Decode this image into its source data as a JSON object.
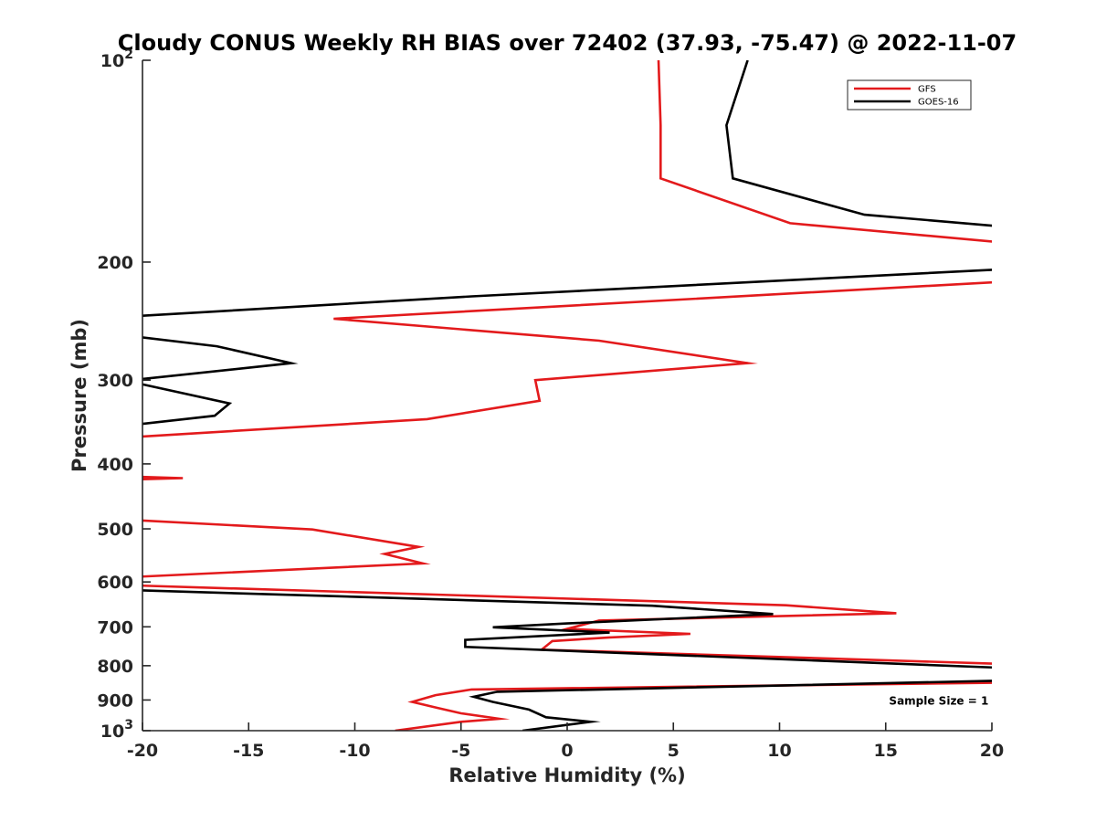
{
  "chart_data": {
    "type": "line",
    "title": "Cloudy CONUS Weekly RH BIAS over 72402 (37.93, -75.47) @ 2022-11-07",
    "xlabel": "Relative Humidity (%)",
    "ylabel": "Pressure (mb)",
    "xlim": [
      -20,
      20
    ],
    "ylim": [
      100,
      1000
    ],
    "y_scale": "log",
    "y_direction": "reversed",
    "x_ticks": [
      -20,
      -15,
      -10,
      -5,
      0,
      5,
      10,
      15,
      20
    ],
    "x_tick_labels": [
      "-20",
      "-15",
      "-10",
      "-5",
      "0",
      "5",
      "10",
      "15",
      "20"
    ],
    "y_ticks": [
      100,
      200,
      300,
      400,
      500,
      600,
      700,
      800,
      900,
      1000
    ],
    "y_tick_labels": [
      {
        "base": "10",
        "exp": "2"
      },
      {
        "base": "200"
      },
      {
        "base": "300"
      },
      {
        "base": "400"
      },
      {
        "base": "500"
      },
      {
        "base": "600"
      },
      {
        "base": "700"
      },
      {
        "base": "800"
      },
      {
        "base": "900"
      },
      {
        "base": "10",
        "exp": "3"
      }
    ],
    "grid": false,
    "legend_position": "top-right",
    "series": [
      {
        "name": "GFS",
        "color": "#e31a1c",
        "points": [
          [
            4.3,
            100
          ],
          [
            4.4,
            125
          ],
          [
            4.4,
            150
          ],
          [
            10.5,
            175
          ],
          [
            20.5,
            187
          ],
          [
            20.5,
            214
          ],
          [
            -11.0,
            243
          ],
          [
            1.5,
            262
          ],
          [
            8.5,
            283
          ],
          [
            -1.5,
            300
          ],
          [
            -1.3,
            322
          ],
          [
            -6.6,
            343
          ],
          [
            -20.5,
            365
          ],
          [
            -20.5,
            418
          ],
          [
            -18.1,
            420
          ],
          [
            -20.5,
            422
          ],
          [
            -20.5,
            485
          ],
          [
            -12.0,
            501
          ],
          [
            -7.0,
            532
          ],
          [
            -8.6,
            545
          ],
          [
            -6.8,
            563
          ],
          [
            -20.5,
            590
          ],
          [
            -20.5,
            607
          ],
          [
            10.3,
            650
          ],
          [
            15.5,
            668
          ],
          [
            1.5,
            685
          ],
          [
            0.0,
            705
          ],
          [
            5.8,
            717
          ],
          [
            2.0,
            726
          ],
          [
            -0.7,
            735
          ],
          [
            -1.2,
            757
          ],
          [
            20.5,
            795
          ],
          [
            20.5,
            848
          ],
          [
            -4.5,
            868
          ],
          [
            -6.2,
            885
          ],
          [
            -7.3,
            906
          ],
          [
            -6.1,
            925
          ],
          [
            -5.0,
            942
          ],
          [
            -3.2,
            960
          ],
          [
            -5.0,
            970
          ],
          [
            -8.1,
            1000
          ]
        ]
      },
      {
        "name": "GOES-16",
        "color": "#000000",
        "points": [
          [
            8.5,
            100
          ],
          [
            7.5,
            125
          ],
          [
            7.8,
            150
          ],
          [
            14.0,
            170
          ],
          [
            20.5,
            177
          ],
          [
            20.5,
            205
          ],
          [
            -4.5,
            225
          ],
          [
            -20.5,
            241
          ],
          [
            -20.5,
            258
          ],
          [
            -16.5,
            267
          ],
          [
            -13.0,
            283
          ],
          [
            -20.5,
            300
          ],
          [
            -20.5,
            302
          ],
          [
            -15.9,
            325
          ],
          [
            -16.6,
            339
          ],
          [
            -20.5,
            350
          ],
          [
            -20.5,
            617
          ],
          [
            4.0,
            651
          ],
          [
            9.7,
            670
          ],
          [
            0.0,
            692
          ],
          [
            -3.5,
            701
          ],
          [
            2.0,
            714
          ],
          [
            -4.8,
            732
          ],
          [
            -4.8,
            750
          ],
          [
            20.5,
            806
          ],
          [
            20.5,
            842
          ],
          [
            -3.3,
            875
          ],
          [
            -4.4,
            890
          ],
          [
            -3.5,
            906
          ],
          [
            -1.8,
            930
          ],
          [
            -1.0,
            955
          ],
          [
            1.1,
            970
          ],
          [
            -2.1,
            1000
          ]
        ]
      }
    ],
    "annotations": [
      {
        "text": "Sample Size = 1",
        "x": 17.5,
        "y": 900
      }
    ]
  }
}
